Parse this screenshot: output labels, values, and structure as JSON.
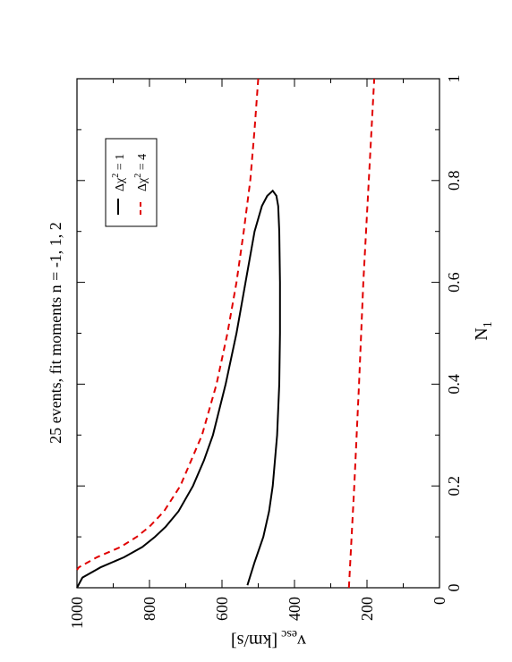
{
  "chart_data": {
    "type": "line",
    "orientation": "rotated-90-ccw",
    "title": "25 events, fit moments n = -1, 1, 2",
    "xlabel": "N",
    "xlabel_sub": "1",
    "ylabel": "v",
    "ylabel_sub": "esc",
    "ylabel_unit": "[km/s]",
    "xlim": [
      0,
      1
    ],
    "ylim": [
      0,
      1000
    ],
    "x_ticks": [
      "0",
      "0.2",
      "0.4",
      "0.6",
      "0.8",
      "1"
    ],
    "y_ticks": [
      "0",
      "200",
      "400",
      "600",
      "800",
      "1000"
    ],
    "legend_position": "top-right",
    "series": [
      {
        "name_prefix": "Δχ",
        "name_sup": "2",
        "name_suffix": " = 1",
        "color": "#000000",
        "dash": "solid",
        "segments": [
          [
            [
              0.005,
              530
            ],
            [
              0.05,
              510
            ],
            [
              0.1,
              486
            ],
            [
              0.15,
              470
            ],
            [
              0.2,
              460
            ],
            [
              0.3,
              448
            ],
            [
              0.4,
              442
            ],
            [
              0.5,
              440
            ],
            [
              0.6,
              440
            ],
            [
              0.7,
              442
            ],
            [
              0.75,
              445
            ],
            [
              0.77,
              450
            ],
            [
              0.78,
              460
            ],
            [
              0.77,
              475
            ],
            [
              0.75,
              490
            ],
            [
              0.7,
              510
            ],
            [
              0.6,
              535
            ],
            [
              0.5,
              560
            ],
            [
              0.4,
              590
            ],
            [
              0.3,
              625
            ],
            [
              0.25,
              650
            ],
            [
              0.2,
              680
            ],
            [
              0.15,
              720
            ],
            [
              0.12,
              755
            ],
            [
              0.1,
              785
            ],
            [
              0.08,
              820
            ],
            [
              0.06,
              870
            ],
            [
              0.04,
              935
            ],
            [
              0.02,
              985
            ],
            [
              0.0,
              1000
            ]
          ]
        ]
      },
      {
        "name_prefix": "Δχ",
        "name_sup": "2",
        "name_suffix": " = 4",
        "color": "#e00000",
        "dash": "dashed",
        "segments": [
          [
            [
              0.0,
              250
            ],
            [
              0.2,
              235
            ],
            [
              0.4,
              222
            ],
            [
              0.6,
              210
            ],
            [
              0.8,
              195
            ],
            [
              1.0,
              180
            ]
          ],
          [
            [
              1.0,
              500
            ],
            [
              0.9,
              510
            ],
            [
              0.8,
              522
            ],
            [
              0.7,
              540
            ],
            [
              0.6,
              560
            ],
            [
              0.5,
              585
            ],
            [
              0.4,
              615
            ],
            [
              0.3,
              655
            ],
            [
              0.2,
              715
            ],
            [
              0.15,
              760
            ],
            [
              0.12,
              800
            ],
            [
              0.1,
              835
            ],
            [
              0.08,
              880
            ],
            [
              0.06,
              945
            ],
            [
              0.04,
              995
            ],
            [
              0.035,
              1000
            ]
          ]
        ]
      }
    ]
  }
}
